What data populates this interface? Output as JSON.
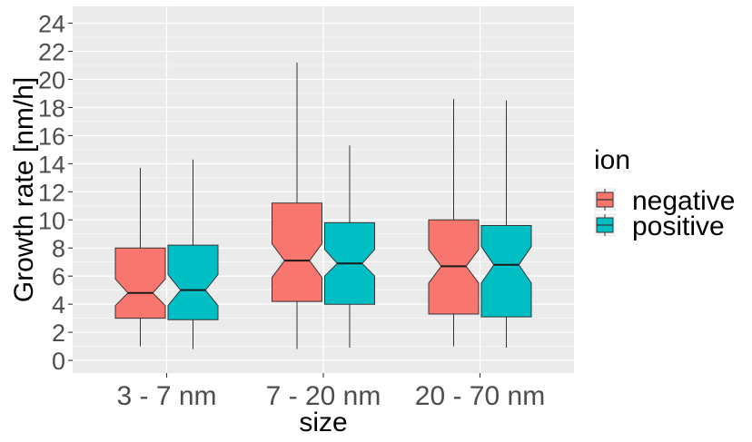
{
  "chart_data": {
    "type": "boxplot",
    "notched": true,
    "xlabel": "size",
    "ylabel": "Growth rate [nm/h]",
    "categories": [
      "3 - 7 nm",
      "7 - 20 nm",
      "20 - 70 nm"
    ],
    "ylim": [
      -0.9,
      25.2
    ],
    "yticks": [
      0,
      2,
      4,
      6,
      8,
      10,
      12,
      14,
      16,
      18,
      20,
      22,
      24
    ],
    "grid": true,
    "legend": {
      "title": "ion",
      "placement": "right"
    },
    "series": [
      {
        "name": "negative",
        "color": "#F8766D",
        "boxes": [
          {
            "category": "3 - 7 nm",
            "min": 1.0,
            "q1": 3.0,
            "median": 4.8,
            "q3": 8.0,
            "max": 13.7,
            "notch_low": 3.9,
            "notch_high": 5.8
          },
          {
            "category": "7 - 20 nm",
            "min": 0.8,
            "q1": 4.2,
            "median": 7.1,
            "q3": 11.2,
            "max": 21.2,
            "notch_low": 5.9,
            "notch_high": 8.3
          },
          {
            "category": "20 - 70 nm",
            "min": 1.0,
            "q1": 3.3,
            "median": 6.7,
            "q3": 10.0,
            "max": 18.6,
            "notch_low": 5.5,
            "notch_high": 7.9
          }
        ]
      },
      {
        "name": "positive",
        "color": "#00BFC4",
        "boxes": [
          {
            "category": "3 - 7 nm",
            "min": 0.8,
            "q1": 2.9,
            "median": 5.0,
            "q3": 8.2,
            "max": 14.3,
            "notch_low": 3.9,
            "notch_high": 6.1
          },
          {
            "category": "7 - 20 nm",
            "min": 0.9,
            "q1": 4.0,
            "median": 6.9,
            "q3": 9.8,
            "max": 15.3,
            "notch_low": 6.0,
            "notch_high": 7.9
          },
          {
            "category": "20 - 70 nm",
            "min": 0.9,
            "q1": 3.1,
            "median": 6.8,
            "q3": 9.6,
            "max": 18.5,
            "notch_low": 5.5,
            "notch_high": 8.1
          }
        ]
      }
    ]
  }
}
